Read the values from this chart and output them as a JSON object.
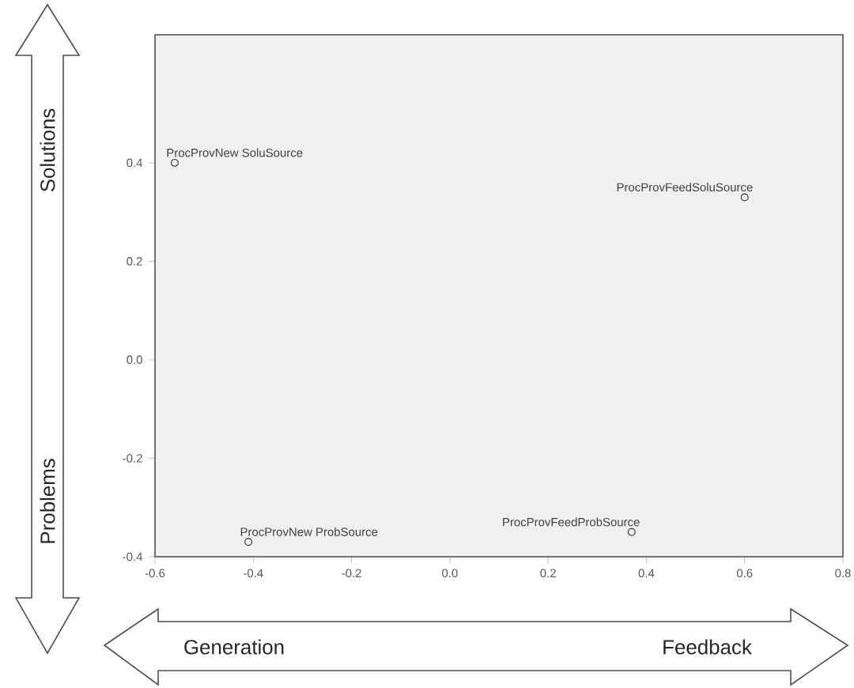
{
  "chart_data": {
    "type": "scatter",
    "x": [
      -0.56,
      0.6,
      -0.41,
      0.37
    ],
    "values": [
      0.4,
      0.33,
      -0.37,
      -0.35
    ],
    "color": "#333333",
    "marker": "circle",
    "xlim": [
      -0.6,
      0.8
    ],
    "xticks": [
      -0.6,
      -0.4,
      -0.2,
      {
        "value": 0,
        "label": "0.0"
      },
      0.2,
      0.4,
      0.6,
      0.8
    ],
    "ylim": [
      -0.4,
      0.66
    ],
    "yticks": [
      -0.4,
      -0.2,
      {
        "value": 0,
        "label": "0.0"
      },
      0.2,
      0.4
    ],
    "annotations": [
      {
        "text": "ProcProvNew SoluSource",
        "x": -0.56,
        "y": 0.4
      },
      {
        "text": "ProcProvFeedSoluSource",
        "x": 0.6,
        "y": 0.33
      },
      {
        "text": "ProcProvNew ProbSource",
        "x": -0.41,
        "y": -0.37
      },
      {
        "text": "ProcProvFeedProbSource",
        "x": 0.37,
        "y": -0.35
      },
      "Solutions",
      "Problems",
      "Generation",
      "Feedback"
    ]
  }
}
